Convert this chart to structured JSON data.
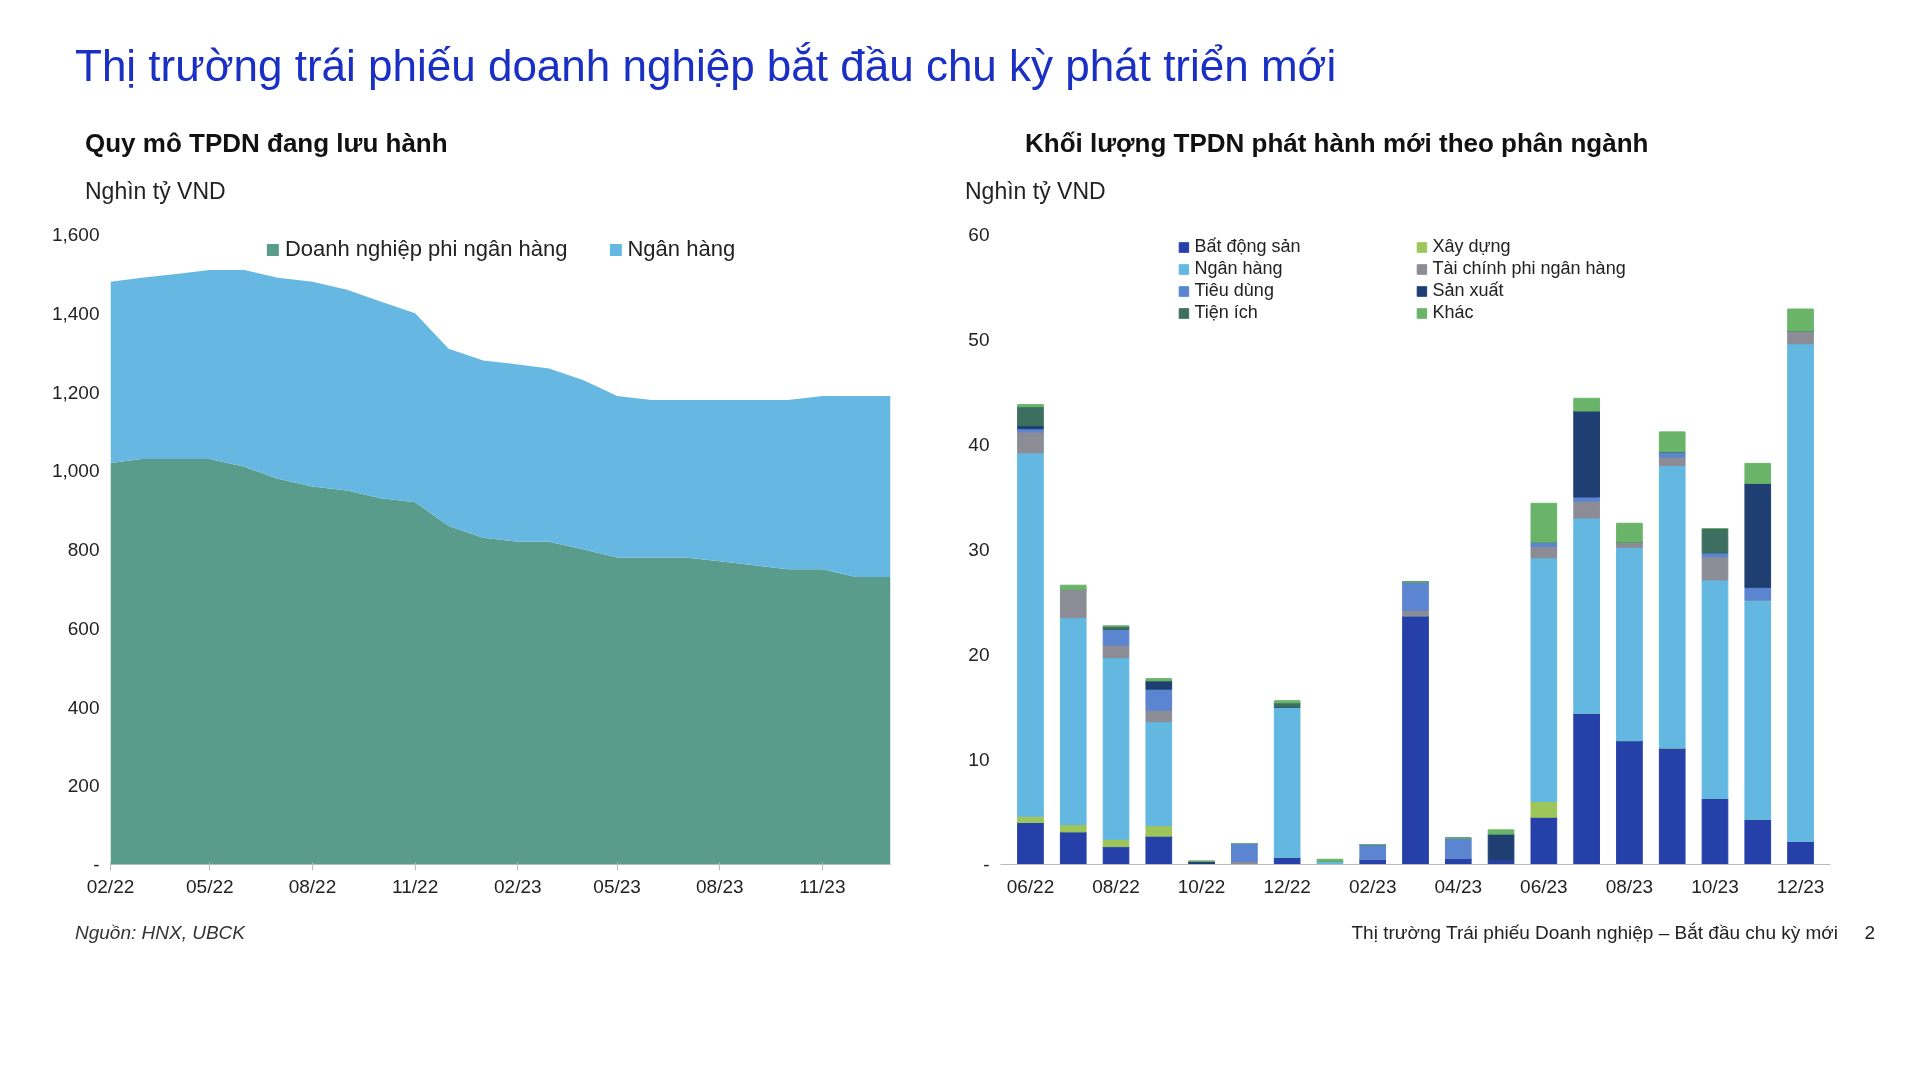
{
  "chart_data": [
    {
      "type": "area",
      "title": "Thị trường trái phiếu doanh nghiệp bắt đầu chu kỳ phát triển mới",
      "subtitle": "Quy mô TPDN đang lưu hành",
      "ylabel": "Nghìn tỷ VND",
      "stacked": true,
      "legend": "top",
      "x": [
        "2022-02",
        "2022-03",
        "2022-04",
        "2022-05",
        "2022-06",
        "2022-07",
        "2022-08",
        "2022-09",
        "2022-10",
        "2022-11",
        "2022-12",
        "2023-01",
        "2023-02",
        "2023-03",
        "2023-04",
        "2023-05",
        "2023-06",
        "2023-07",
        "2023-08",
        "2023-09",
        "2023-10",
        "2023-11",
        "2023-12",
        "2024-01"
      ],
      "series": [
        {
          "name": "Doanh nghiệp phi ngân hàng",
          "color": "#5a9c8c",
          "values": [
            1020,
            1030,
            1030,
            1030,
            1010,
            980,
            960,
            950,
            930,
            920,
            860,
            830,
            820,
            820,
            800,
            780,
            780,
            780,
            770,
            760,
            750,
            750,
            730,
            730
          ]
        },
        {
          "name": "Ngân hàng",
          "color": "#66b8e3",
          "values": [
            460,
            460,
            470,
            480,
            500,
            510,
            520,
            510,
            500,
            480,
            450,
            450,
            450,
            440,
            430,
            410,
            400,
            400,
            410,
            420,
            430,
            440,
            460,
            460
          ]
        }
      ],
      "xlim": [
        "2022-02",
        "2024-01"
      ],
      "ylim": [
        0,
        1600
      ],
      "xticks": [
        {
          "value": "2022-02",
          "label": "02/22"
        },
        {
          "value": "2022-05",
          "label": "05/22"
        },
        {
          "value": "2022-08",
          "label": "08/22"
        },
        {
          "value": "2022-11",
          "label": "11/22"
        },
        {
          "value": "2023-02",
          "label": "02/23"
        },
        {
          "value": "2023-05",
          "label": "05/23"
        },
        {
          "value": "2023-08",
          "label": "08/23"
        },
        {
          "value": "2023-11",
          "label": "11/23"
        }
      ],
      "yticks": [
        {
          "value": 0,
          "label": "-"
        },
        200,
        400,
        600,
        800,
        {
          "value": 1000,
          "label": "1,000"
        },
        {
          "value": 1200,
          "label": "1,200"
        },
        {
          "value": 1400,
          "label": "1,400"
        },
        {
          "value": 1600,
          "label": "1,600"
        }
      ],
      "annotations": [
        "Nguồn: HNX, UBCK"
      ]
    },
    {
      "type": "bar",
      "title": "Khối lượng TPDN phát hành mới theo phân ngành",
      "ylabel": "Nghìn tỷ VND",
      "stacked": true,
      "legend": "top right",
      "categories": [
        "06/22",
        null,
        "08/22",
        null,
        "10/22",
        null,
        "12/22",
        null,
        "02/23",
        null,
        "04/23",
        null,
        "06/23",
        null,
        "08/23",
        null,
        "10/23",
        null,
        "12/23"
      ],
      "series": [
        {
          "name": "Bất động sản",
          "color": "#2540a8",
          "values": [
            4.0,
            3.1,
            1.7,
            2.7,
            0,
            0,
            0.7,
            0,
            0.5,
            23.7,
            0.6,
            0.4,
            4.5,
            14.4,
            11.8,
            11.1,
            6.3,
            4.3,
            2.2
          ]
        },
        {
          "name": "Xây dựng",
          "color": "#9dc55a",
          "values": [
            0.6,
            0.7,
            0.7,
            1.0,
            null,
            0,
            0,
            0,
            0,
            0,
            0,
            0,
            1.5,
            0,
            0,
            0,
            0,
            0,
            0
          ]
        },
        {
          "name": "Ngân hàng",
          "color": "#63b8e2",
          "values": [
            34.6,
            19.7,
            17.3,
            9.9,
            0,
            0,
            14.3,
            0.3,
            0,
            0,
            0,
            0,
            23.2,
            18.6,
            18.4,
            26.9,
            20.8,
            20.9,
            47.4
          ]
        },
        {
          "name": "Tài chính phi ngân hàng",
          "color": "#8c8c96",
          "values": [
            2.0,
            2.7,
            1.2,
            1.1,
            0,
            0.3,
            0,
            0,
            0,
            0.5,
            0,
            0,
            1.1,
            1.6,
            0.5,
            0.8,
            2.2,
            0,
            1.2
          ]
        },
        {
          "name": "Tiêu dùng",
          "color": "#5b85d0",
          "values": [
            0.3,
            0,
            1.5,
            2.0,
            0,
            1.7,
            0,
            0,
            1.4,
            2.7,
            1.9,
            0,
            0.4,
            0.4,
            0,
            0.5,
            0.4,
            1.2,
            0
          ]
        },
        {
          "name": "Sản xuất",
          "color": "#1f3f73",
          "values": [
            0.3,
            0,
            0,
            0.8,
            0.3,
            0,
            0,
            0,
            0,
            0,
            0,
            2.5,
            0,
            8.2,
            0,
            0,
            0,
            9.9,
            0
          ]
        },
        {
          "name": "Tiện ích",
          "color": "#3d6f60",
          "values": [
            1.8,
            0,
            0.3,
            0,
            0,
            0,
            0.4,
            0,
            0,
            0,
            0,
            0,
            0,
            0,
            0,
            0,
            2.3,
            0,
            0
          ]
        },
        {
          "name": "Khác",
          "color": "#6ab46a",
          "values": [
            0.2,
            0.4,
            0,
            0.2,
            0,
            0,
            0.2,
            0.2,
            0,
            0,
            0,
            0.4,
            3.7,
            1.2,
            1.8,
            1.9,
            0,
            1.9,
            2.1
          ]
        }
      ],
      "ylim": [
        0,
        60
      ],
      "yticks": [
        {
          "value": 0,
          "label": "-"
        },
        10,
        20,
        30,
        40,
        50,
        60
      ],
      "annotations": [
        "Thị trường Trái phiếu Doanh nghiệp – Bắt đầu chu kỳ mới",
        "2"
      ]
    }
  ]
}
